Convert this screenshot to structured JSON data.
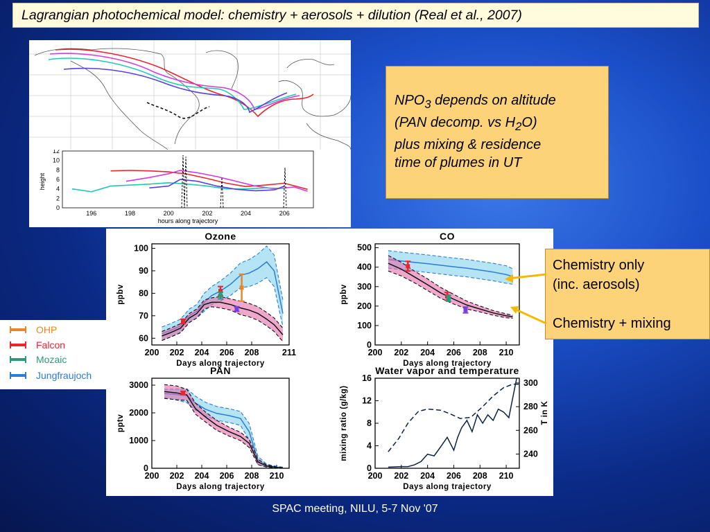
{
  "title": "Lagrangian photochemical  model: chemistry + aerosols + dilution (Real et al., 2007)",
  "note": {
    "lines": [
      {
        "pre": "NPO",
        "sub": "3",
        "post": " depends on altitude"
      },
      {
        "pre": "(PAN decomp. vs H",
        "sub": "2",
        "post": "O)"
      },
      {
        "pre": "plus mixing & residence",
        "sub": "",
        "post": ""
      },
      {
        "pre": "time of plumes in UT",
        "sub": "",
        "post": ""
      }
    ]
  },
  "callout": {
    "line1": "Chemistry only",
    "line2": "(inc. aerosols)",
    "line3": "Chemistry + mixing",
    "arrow_color": "#f5b800"
  },
  "legend": [
    {
      "label": "OHP",
      "color": "#e8862a"
    },
    {
      "label": "Falcon",
      "color": "#e8252e"
    },
    {
      "label": "Mozaic",
      "color": "#2a9a7a"
    },
    {
      "label": "Jungfraujoch",
      "color": "#2c7bd6"
    }
  ],
  "footer": "SPAC meeting, NILU, 5-7 Nov '07",
  "chart_data": [
    {
      "id": "height",
      "type": "line",
      "title": "",
      "ylabel": "height",
      "xlabel": "hours along trajectory",
      "xlim": [
        194.5,
        207.5
      ],
      "ylim": [
        0,
        12
      ],
      "xticks": [
        196,
        198,
        200,
        202,
        204,
        206
      ],
      "yticks": [
        0,
        2,
        4,
        6,
        8,
        10,
        12
      ],
      "series": [
        {
          "color": "#e8252e",
          "x": [
            197,
            198,
            199,
            200,
            201,
            202,
            203,
            204,
            205,
            206,
            207.2
          ],
          "y": [
            7.8,
            7.9,
            7.8,
            7.6,
            7.1,
            6.2,
            5.2,
            4.5,
            4.8,
            5.2,
            3.9
          ]
        },
        {
          "color": "#d23be0",
          "x": [
            197.8,
            199,
            200,
            200.6,
            201.5,
            202.5,
            203.5,
            204.5,
            205.5,
            206.5,
            207.2
          ],
          "y": [
            5.6,
            6.4,
            7.2,
            7.9,
            7.4,
            6.6,
            5.6,
            4.6,
            4.0,
            4.4,
            3.5
          ]
        },
        {
          "color": "#20c9b5",
          "x": [
            195,
            196,
            197,
            198,
            199,
            200,
            201,
            202,
            203,
            204,
            205,
            206
          ],
          "y": [
            4.0,
            3.4,
            4.6,
            4.8,
            5.0,
            5.3,
            5.0,
            4.6,
            4.0,
            4.0,
            4.2,
            4.1
          ]
        },
        {
          "color": "#5a3fd8",
          "x": [
            199,
            200,
            200.6,
            201.5,
            202.5,
            203.5,
            204.5,
            205.5,
            206
          ],
          "y": [
            4.2,
            4.6,
            6.0,
            5.6,
            4.6,
            3.9,
            3.6,
            3.8,
            4.6
          ]
        }
      ]
    },
    {
      "id": "ozone",
      "type": "line",
      "title": "Ozone",
      "ylabel": "ppbv",
      "xlabel": "Days along trajectory",
      "xlim": [
        200,
        211
      ],
      "ylim": [
        57,
        102
      ],
      "xticks": [
        200,
        202,
        204,
        206,
        208,
        211
      ],
      "yticks": [
        60,
        70,
        80,
        90,
        100
      ],
      "series": [
        {
          "name": "chemistry only",
          "color": "#2c7bd6",
          "x": [
            200.8,
            201.5,
            202.3,
            203,
            203.6,
            204.2,
            204.8,
            205.5,
            206.3,
            207.1,
            207.8,
            208.5,
            209.2,
            209.8,
            210.5
          ],
          "y": [
            62,
            63.5,
            65.5,
            70,
            72,
            76,
            79,
            81,
            84,
            88,
            89,
            91,
            94,
            90,
            71
          ],
          "band": [
            3,
            3,
            3,
            3,
            3,
            4,
            4,
            4.5,
            5,
            5.5,
            6,
            6.5,
            7,
            7,
            6
          ]
        },
        {
          "name": "chemistry + mixing",
          "color": "#111111",
          "x": [
            200.8,
            201.5,
            202.3,
            203,
            203.6,
            204.2,
            204.8,
            205.5,
            206.3,
            207.1,
            207.8,
            208.5,
            209.2,
            209.8,
            210.5
          ],
          "y": [
            61,
            62.5,
            64.5,
            69,
            71,
            75,
            76,
            76,
            75,
            73.5,
            72.5,
            71,
            68.5,
            66,
            61.5
          ],
          "band": [
            2,
            2,
            2,
            2,
            2,
            2,
            2,
            2.5,
            2.5,
            3,
            3,
            3,
            3,
            3,
            3
          ]
        }
      ],
      "observations": [
        {
          "source": "Falcon",
          "color": "#e8252e",
          "x": 202.5,
          "y": 67.5,
          "err": 1
        },
        {
          "source": "Falcon",
          "color": "#e8252e",
          "x": 205.5,
          "y": 81,
          "err": 2
        },
        {
          "source": "OHP",
          "color": "#e8862a",
          "x": 207.2,
          "y": 82.5,
          "err": 6
        },
        {
          "source": "Mozaic",
          "color": "#2a9a7a",
          "x": 205.5,
          "y": 79,
          "err": 1.5
        },
        {
          "source": "Jungfraujoch",
          "color": "#7a3fe0",
          "x": 206.8,
          "y": 73,
          "err": 1
        }
      ]
    },
    {
      "id": "co",
      "type": "line",
      "title": "CO",
      "ylabel": "ppbv",
      "xlabel": "Days along trajectory",
      "xlim": [
        200,
        211
      ],
      "ylim": [
        0,
        520
      ],
      "xticks": [
        200,
        202,
        204,
        206,
        208,
        210
      ],
      "yticks": [
        0,
        100,
        200,
        300,
        400,
        500
      ],
      "series": [
        {
          "name": "chemistry only",
          "color": "#2c7bd6",
          "x": [
            201,
            202,
            203,
            204,
            205,
            206,
            207,
            208,
            209,
            210,
            210.5
          ],
          "y": [
            440,
            432,
            425,
            418,
            410,
            402,
            395,
            385,
            375,
            362,
            352
          ],
          "band": [
            45,
            45,
            45,
            45,
            45,
            45,
            45,
            45,
            45,
            45,
            40
          ]
        },
        {
          "name": "chemistry + mixing",
          "color": "#111111",
          "x": [
            201,
            202,
            203,
            204,
            205,
            206,
            207,
            208,
            209,
            210,
            210.5
          ],
          "y": [
            420,
            390,
            350,
            310,
            268,
            235,
            205,
            185,
            165,
            150,
            145
          ],
          "band": [
            40,
            35,
            30,
            30,
            28,
            25,
            20,
            15,
            12,
            10,
            8
          ]
        }
      ],
      "observations": [
        {
          "source": "Falcon",
          "color": "#e8252e",
          "x": 202.5,
          "y": 405,
          "err": 25
        },
        {
          "source": "Falcon",
          "color": "#e8252e",
          "x": 205.5,
          "y": 250,
          "err": 20
        },
        {
          "source": "Mozaic",
          "color": "#2a9a7a",
          "x": 205.6,
          "y": 240,
          "err": 15
        },
        {
          "source": "Jungfraujoch",
          "color": "#7a3fe0",
          "x": 206.9,
          "y": 180,
          "err": 15
        }
      ]
    },
    {
      "id": "pan",
      "type": "line",
      "title": "PAN",
      "ylabel": "pptv",
      "xlabel": "Days along trajectory",
      "xlim": [
        200,
        211
      ],
      "ylim": [
        0,
        3250
      ],
      "xticks": [
        200,
        202,
        204,
        206,
        208,
        210
      ],
      "yticks": [
        0,
        1000,
        2000,
        3000
      ],
      "series": [
        {
          "name": "chemistry only",
          "color": "#2c7bd6",
          "x": [
            201,
            202,
            202.8,
            203.5,
            204.3,
            205.2,
            206.2,
            207.1,
            207.8,
            208.5,
            209.2,
            210,
            210.5
          ],
          "y": [
            2700,
            2660,
            2620,
            2350,
            2130,
            1980,
            1900,
            1800,
            1320,
            280,
            100,
            40,
            20
          ],
          "band": [
            150,
            200,
            250,
            250,
            250,
            250,
            250,
            250,
            300,
            150,
            50,
            30,
            20
          ]
        },
        {
          "name": "chemistry + mixing",
          "color": "#111111",
          "x": [
            201,
            202,
            202.8,
            203.5,
            204.3,
            205.2,
            206.2,
            207.1,
            207.8,
            208.5,
            209.2,
            210,
            210.5
          ],
          "y": [
            2770,
            2720,
            2650,
            2150,
            1850,
            1550,
            1320,
            1150,
            900,
            230,
            80,
            30,
            15
          ],
          "band": [
            250,
            250,
            200,
            200,
            180,
            180,
            160,
            150,
            150,
            100,
            40,
            20,
            10
          ]
        }
      ],
      "observations": [
        {
          "source": "Falcon",
          "color": "#e8252e",
          "x": 202.5,
          "y": 2720,
          "err": 60
        }
      ]
    },
    {
      "id": "water",
      "type": "line",
      "title": "Water vapor and temperature",
      "ylabel": "mixing ratio (g/kg)",
      "y2label": "T in K",
      "xlabel": "Days along trajectory",
      "xlim": [
        200,
        211
      ],
      "ylim": [
        0,
        16
      ],
      "y2lim": [
        228,
        304
      ],
      "xticks": [
        200,
        202,
        204,
        206,
        208,
        210
      ],
      "yticks": [
        0,
        4,
        8,
        12,
        16
      ],
      "y2ticks": [
        240,
        260,
        280,
        300
      ],
      "series": [
        {
          "name": "mixing ratio",
          "axis": "y",
          "color": "#0d2240",
          "x": [
            201,
            202,
            202.5,
            203,
            203.5,
            204,
            204.5,
            205,
            205.5,
            206,
            206.3,
            206.6,
            207,
            207.4,
            207.8,
            208.2,
            208.6,
            209,
            209.4,
            209.8,
            210.2,
            210.5,
            210.8
          ],
          "y": [
            0.2,
            0.3,
            0.3,
            0.6,
            1.2,
            2.5,
            2.2,
            3.8,
            5.5,
            3.2,
            5.5,
            7.2,
            8.5,
            6.5,
            9.5,
            8.0,
            9.5,
            8.5,
            10.5,
            10.0,
            9.0,
            12.5,
            16
          ]
        },
        {
          "name": "temperature",
          "axis": "y2",
          "color": "#0d2240",
          "dashed": true,
          "x": [
            201,
            201.8,
            202.5,
            203.3,
            204,
            205,
            205.7,
            206.5,
            207.3,
            208.2,
            209,
            209.8,
            210.5,
            211
          ],
          "y": [
            242,
            253,
            266,
            276,
            278,
            277,
            274,
            270,
            271,
            280,
            289,
            296,
            299,
            299
          ]
        }
      ]
    }
  ]
}
